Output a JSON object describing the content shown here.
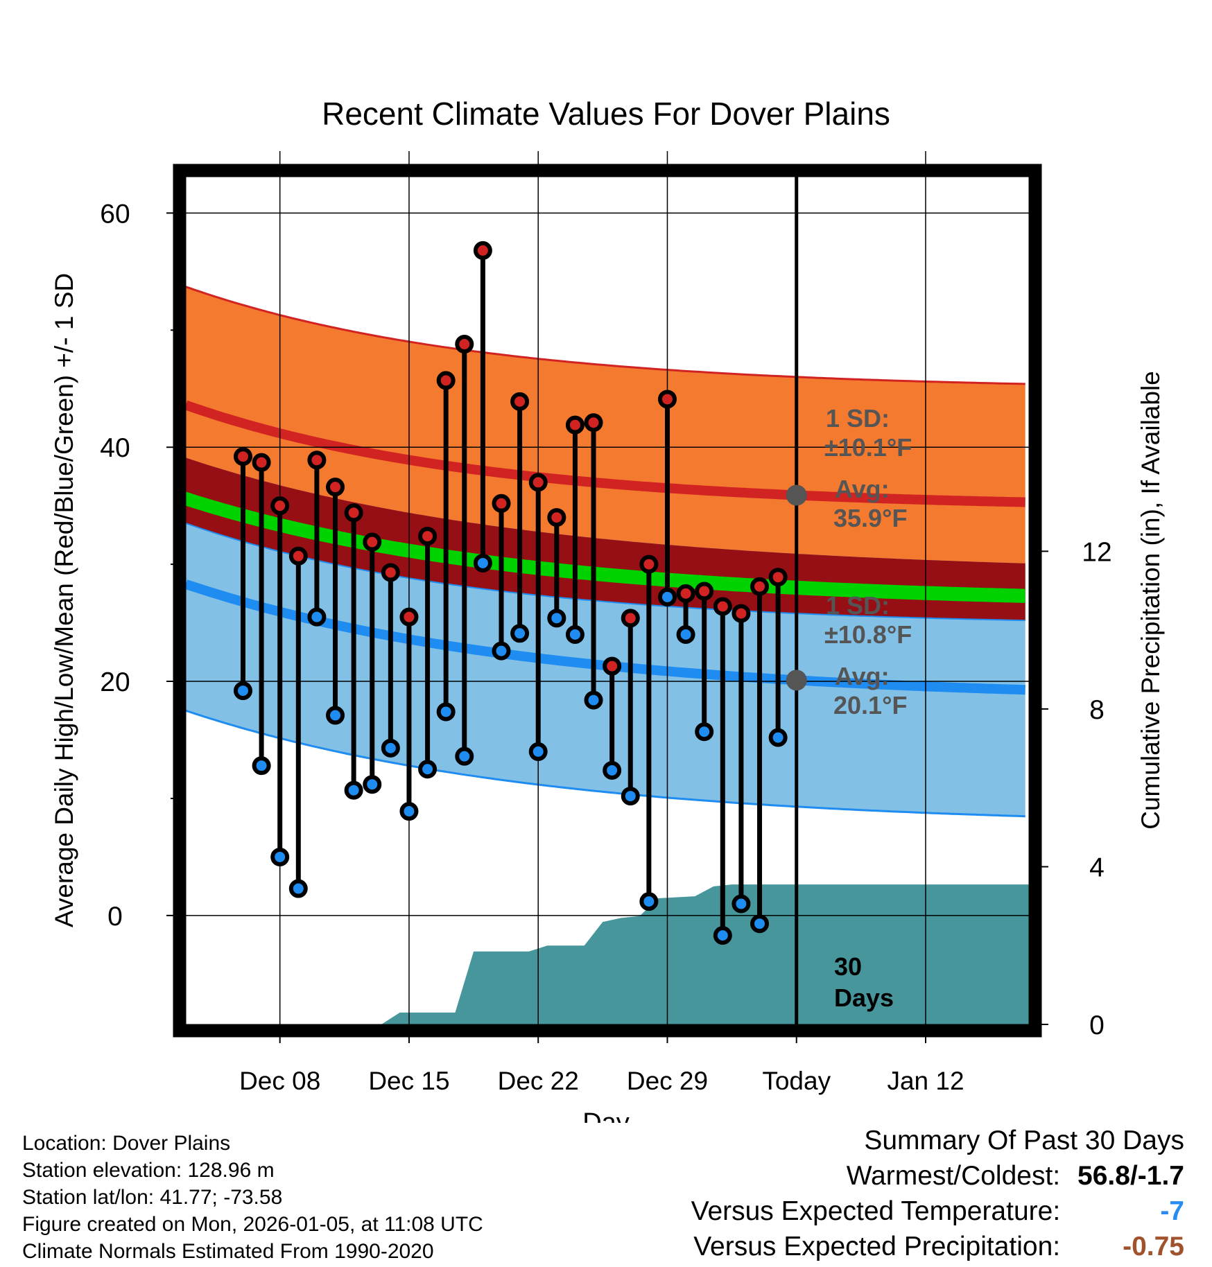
{
  "chart_data": {
    "type": "line",
    "title": "Recent Climate Values For Dover Plains",
    "xlabel": "Day",
    "ylabel_left": "Average Daily High/Low/Mean (Red/Blue/Green) +/- 1 SD",
    "ylabel_right": "Cumulative Precipitation (in), If Available",
    "x_range_days": [
      -33.1,
      12.6
    ],
    "ylim_left": [
      -9.3,
      63.1
    ],
    "ylim_right": [
      0,
      21.5
    ],
    "x_ticks": [
      {
        "day": -28,
        "label": "Dec 08"
      },
      {
        "day": -21,
        "label": "Dec 15"
      },
      {
        "day": -14,
        "label": "Dec 22"
      },
      {
        "day": -7,
        "label": "Dec 29"
      },
      {
        "day": 0,
        "label": "Today"
      },
      {
        "day": 7,
        "label": "Jan 12"
      }
    ],
    "y_ticks_left": [
      0,
      20,
      40,
      60
    ],
    "y_minor_left": [
      10,
      30,
      50
    ],
    "y_ticks_right": [
      0,
      4,
      8,
      12
    ],
    "normals": {
      "high_mean": {
        "start": 43.6,
        "today": 35.9,
        "end": 34.8
      },
      "high_sd": 10.1,
      "low_mean": {
        "start": 28.3,
        "today": 20.1,
        "end": 18.4
      },
      "low_sd": 10.8,
      "mean": {
        "start": 35.6,
        "today": 28.0,
        "end": 26.6
      },
      "mean_band_halfwidth": 0.6
    },
    "annotations": {
      "high_sd_label": "1 SD:",
      "high_sd_value": "±10.1°F",
      "high_avg_label": "Avg:",
      "high_avg_value": "35.9°F",
      "low_sd_label": "1 SD:",
      "low_sd_value": "±10.8°F",
      "low_avg_label": "Avg:",
      "low_avg_value": "20.1°F",
      "period_value": "30",
      "period_unit": "Days"
    },
    "days": [
      -30,
      -29,
      -28,
      -27,
      -26,
      -25,
      -24,
      -23,
      -22,
      -21,
      -20,
      -19,
      -18,
      -17,
      -16,
      -15,
      -14,
      -13,
      -12,
      -11,
      -10,
      -9,
      -8,
      -7,
      -6,
      -5,
      -4,
      -3,
      -2,
      -1
    ],
    "highs": [
      39.2,
      38.7,
      35.0,
      30.7,
      38.9,
      36.6,
      34.4,
      31.9,
      29.3,
      25.5,
      32.4,
      45.7,
      48.8,
      56.8,
      35.2,
      43.9,
      37.0,
      34.0,
      41.9,
      42.1,
      21.3,
      25.4,
      30.0,
      44.1,
      27.5,
      27.7,
      26.4,
      25.8,
      28.1,
      28.9
    ],
    "lows": [
      19.2,
      12.8,
      5.0,
      2.3,
      25.5,
      17.1,
      10.7,
      11.2,
      14.3,
      8.9,
      12.5,
      17.4,
      13.6,
      30.1,
      22.6,
      24.1,
      14.0,
      25.4,
      24.0,
      18.4,
      12.4,
      10.2,
      1.2,
      27.2,
      24.0,
      15.7,
      -1.7,
      1.0,
      -0.7,
      15.2
    ],
    "precip_cumulative": [
      {
        "day": -33.1,
        "value": 0
      },
      {
        "day": -22.5,
        "value": 0
      },
      {
        "day": -21.5,
        "value": 0.3
      },
      {
        "day": -18.5,
        "value": 0.3
      },
      {
        "day": -17.5,
        "value": 1.85
      },
      {
        "day": -14.5,
        "value": 1.85
      },
      {
        "day": -13.5,
        "value": 2.0
      },
      {
        "day": -11.5,
        "value": 2.0
      },
      {
        "day": -10.5,
        "value": 2.6
      },
      {
        "day": -9.5,
        "value": 2.7
      },
      {
        "day": -8.5,
        "value": 2.75
      },
      {
        "day": -7.5,
        "value": 3.2
      },
      {
        "day": -5.5,
        "value": 3.25
      },
      {
        "day": -4.5,
        "value": 3.5
      },
      {
        "day": -3.5,
        "value": 3.55
      },
      {
        "day": 12.6,
        "value": 3.55
      }
    ],
    "colors": {
      "high_band": "#f47a2f",
      "high_line": "#d22323",
      "low_band": "#82c0e6",
      "low_line": "#1e8cf0",
      "mean_band": "#960f14",
      "mean_line": "#00d200",
      "precip": "#46969b",
      "high_marker": "#d22323",
      "low_marker": "#1e8cf0",
      "annotation_text": "#555555",
      "today_marker": "#555555"
    }
  },
  "footer": {
    "location": "Location: Dover Plains",
    "elevation": "Station elevation: 128.96 m",
    "latlon": "Station lat/lon: 41.77; -73.58",
    "created": "Figure created on Mon, 2026-01-05, at 11:08 UTC",
    "normals": "Climate Normals Estimated From 1990-2020"
  },
  "summary": {
    "title": "Summary Of Past 30 Days",
    "warmest_coldest_label": "Warmest/Coldest:",
    "warmest_coldest_value": "56.8/-1.7",
    "temp_label": "Versus Expected Temperature:",
    "temp_value": "-7",
    "temp_color": "#2a8cf0",
    "precip_label": "Versus Expected Precipitation:",
    "precip_value": "-0.75",
    "precip_color": "#a0522d"
  }
}
